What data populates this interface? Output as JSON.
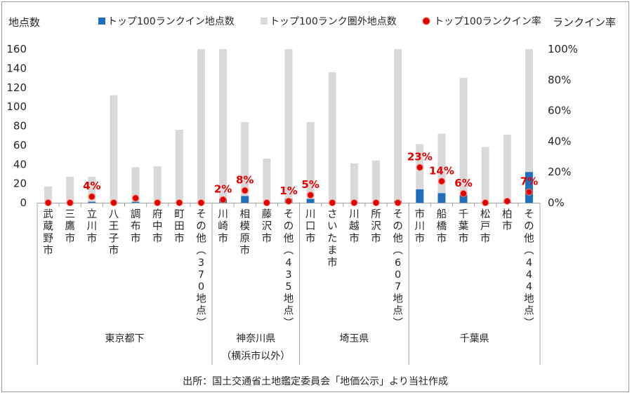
{
  "chart_data": {
    "type": "bar",
    "y_left_label": "地点数",
    "y_right_label": "ランクイン率",
    "y_left_ticks": [
      "0",
      "20",
      "40",
      "60",
      "80",
      "100",
      "120",
      "140",
      "160"
    ],
    "y_right_ticks": [
      "0%",
      "20%",
      "40%",
      "60%",
      "80%",
      "100%"
    ],
    "ylim": [
      0,
      160
    ],
    "y2lim": [
      0,
      1
    ],
    "legend": [
      {
        "key": "in",
        "name": "トップ100ランクイン地点数",
        "color": "#1f6fbd"
      },
      {
        "key": "out",
        "name": "トップ100ランク圏外地点数",
        "color": "#d9d9d9"
      },
      {
        "key": "rate",
        "name": "トップ100ランクイン率",
        "color": "#e00000"
      }
    ],
    "categories": [
      {
        "label": "武蔵野市",
        "in": 0,
        "out": 17,
        "rate": 0.0
      },
      {
        "label": "三鷹市",
        "in": 0,
        "out": 27,
        "rate": 0.0
      },
      {
        "label": "立川市",
        "in": 1,
        "out": 26,
        "rate": 0.04,
        "rate_label": "4%"
      },
      {
        "label": "八王子市",
        "in": 0,
        "out": 112,
        "rate": 0.0
      },
      {
        "label": "調布市",
        "in": 1,
        "out": 36,
        "rate": 0.03
      },
      {
        "label": "府中市",
        "in": 0,
        "out": 38,
        "rate": 0.0
      },
      {
        "label": "町田市",
        "in": 0,
        "out": 76,
        "rate": 0.0
      },
      {
        "label": "その他（370地点）",
        "in": 0,
        "out": 160,
        "rate": 0.0
      },
      {
        "label": "川崎市",
        "in": 4,
        "out": 156,
        "rate": 0.02,
        "rate_label": "2%"
      },
      {
        "label": "相模原市",
        "in": 7,
        "out": 77,
        "rate": 0.08,
        "rate_label": "8%"
      },
      {
        "label": "藤沢市",
        "in": 0,
        "out": 46,
        "rate": 0.0
      },
      {
        "label": "その他（435地点）",
        "in": 4,
        "out": 156,
        "rate": 0.01,
        "rate_label": "1%"
      },
      {
        "label": "川口市",
        "in": 4,
        "out": 80,
        "rate": 0.05,
        "rate_label": "5%"
      },
      {
        "label": "さいたま市",
        "in": 0,
        "out": 136,
        "rate": 0.0
      },
      {
        "label": "川越市",
        "in": 0,
        "out": 41,
        "rate": 0.0
      },
      {
        "label": "所沢市",
        "in": 0,
        "out": 44,
        "rate": 0.0
      },
      {
        "label": "その他（607地点）",
        "in": 2,
        "out": 158,
        "rate": 0.0
      },
      {
        "label": "市川市",
        "in": 14,
        "out": 47,
        "rate": 0.23,
        "rate_label": "23%"
      },
      {
        "label": "船橋市",
        "in": 10,
        "out": 62,
        "rate": 0.14,
        "rate_label": "14%"
      },
      {
        "label": "千葉市",
        "in": 8,
        "out": 122,
        "rate": 0.06,
        "rate_label": "6%"
      },
      {
        "label": "松戸市",
        "in": 0,
        "out": 58,
        "rate": 0.0
      },
      {
        "label": "柏市",
        "in": 1,
        "out": 70,
        "rate": 0.01
      },
      {
        "label": "その他（444地点）",
        "in": 32,
        "out": 128,
        "rate": 0.07,
        "rate_label": "7%"
      }
    ],
    "groups": [
      {
        "name": "東京都下",
        "sub": "",
        "start": 0,
        "end": 7
      },
      {
        "name": "神奈川県",
        "sub": "（横浜市以外）",
        "start": 8,
        "end": 11
      },
      {
        "name": "埼玉県",
        "sub": "",
        "start": 12,
        "end": 16
      },
      {
        "name": "千葉県",
        "sub": "",
        "start": 17,
        "end": 22
      }
    ]
  },
  "source": "出所：国土交通省土地鑑定委員会「地価公示」より当社作成"
}
